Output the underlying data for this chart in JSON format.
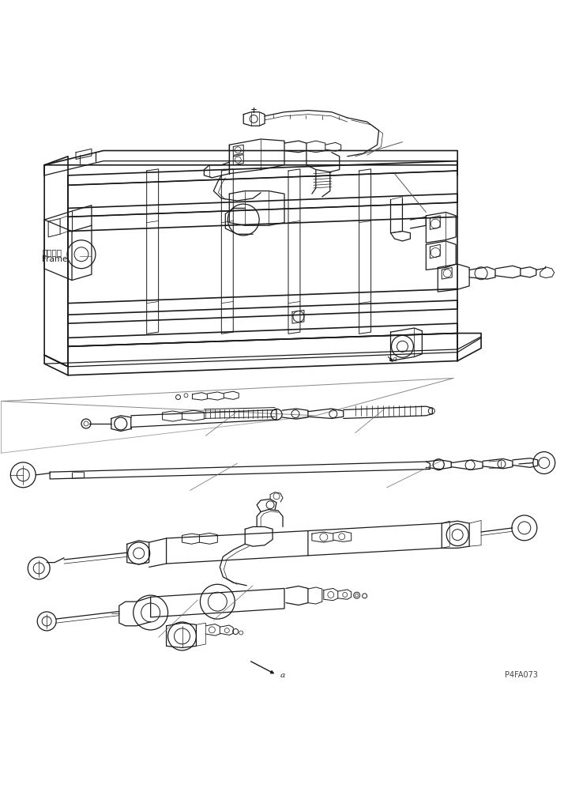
{
  "background_color": "#ffffff",
  "line_color": "#1a1a1a",
  "lw_heavy": 1.2,
  "lw_med": 0.9,
  "lw_light": 0.7,
  "lw_thin": 0.5,
  "fig_width": 7.33,
  "fig_height": 10.02,
  "dpi": 100,
  "label_frame_jp": "フレーム",
  "label_frame_en": "Frame",
  "watermark": "P4FA073",
  "font_size_label": 7.5,
  "font_size_watermark": 7
}
